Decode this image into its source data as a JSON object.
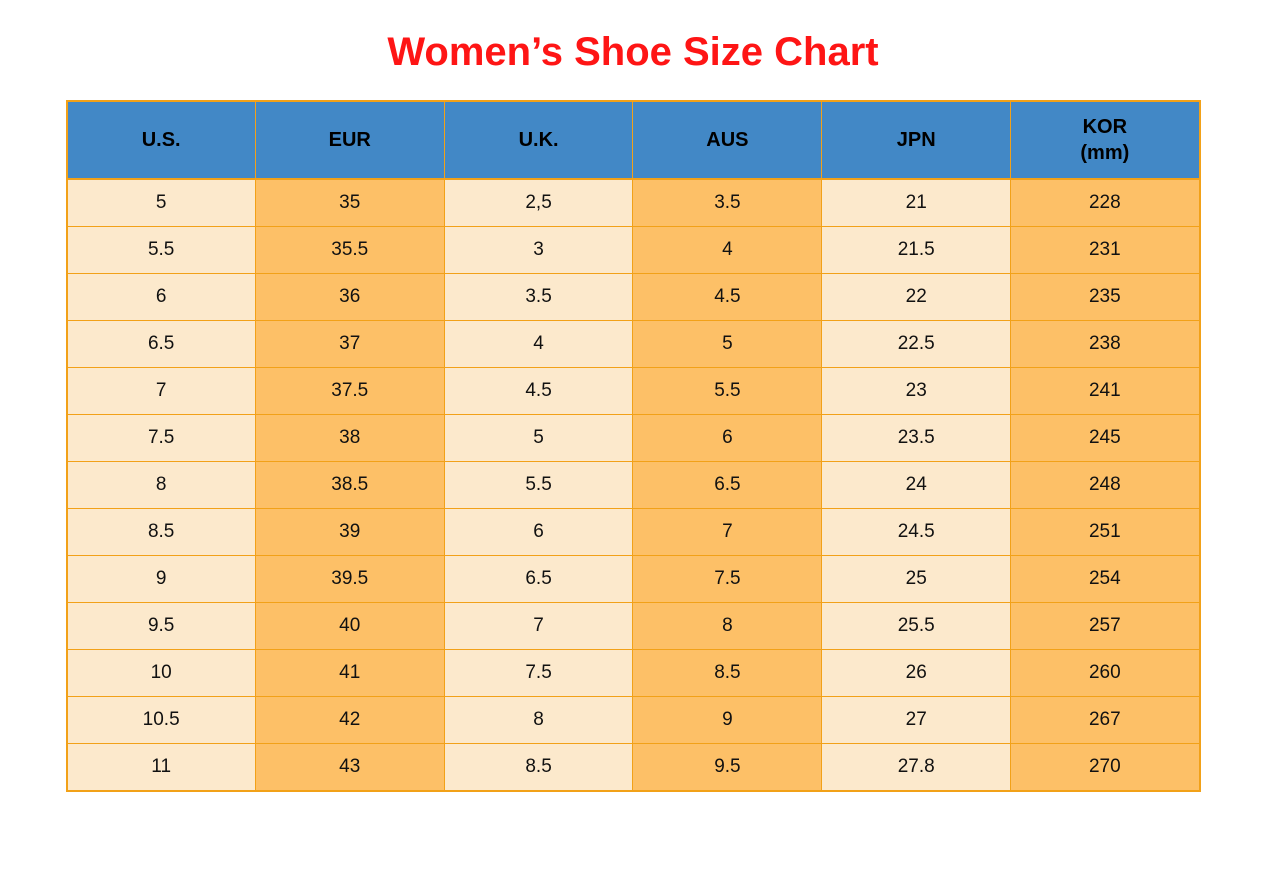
{
  "title": {
    "text": "Women’s Shoe Size Chart"
  },
  "colors": {
    "title_red": "#fe1515",
    "header_blue": "#4288c6",
    "cream": "#fce9cc",
    "orange": "#fdc067",
    "border_orange": "#f2a118",
    "text": "#111111"
  },
  "chart_data": {
    "type": "table",
    "title": "Women’s Shoe Size Chart",
    "columns": [
      "U.S.",
      "EUR",
      "U.K.",
      "AUS",
      "JPN",
      "KOR\n(mm)"
    ],
    "rows": [
      [
        "5",
        "35",
        "2,5",
        "3.5",
        "21",
        "228"
      ],
      [
        "5.5",
        "35.5",
        "3",
        "4",
        "21.5",
        "231"
      ],
      [
        "6",
        "36",
        "3.5",
        "4.5",
        "22",
        "235"
      ],
      [
        "6.5",
        "37",
        "4",
        "5",
        "22.5",
        "238"
      ],
      [
        "7",
        "37.5",
        "4.5",
        "5.5",
        "23",
        "241"
      ],
      [
        "7.5",
        "38",
        "5",
        "6",
        "23.5",
        "245"
      ],
      [
        "8",
        "38.5",
        "5.5",
        "6.5",
        "24",
        "248"
      ],
      [
        "8.5",
        "39",
        "6",
        "7",
        "24.5",
        "251"
      ],
      [
        "9",
        "39.5",
        "6.5",
        "7.5",
        "25",
        "254"
      ],
      [
        "9.5",
        "40",
        "7",
        "8",
        "25.5",
        "257"
      ],
      [
        "10",
        "41",
        "7.5",
        "8.5",
        "26",
        "260"
      ],
      [
        "10.5",
        "42",
        "8",
        "9",
        "27",
        "267"
      ],
      [
        "11",
        "43",
        "8.5",
        "9.5",
        "27.8",
        "270"
      ]
    ]
  }
}
